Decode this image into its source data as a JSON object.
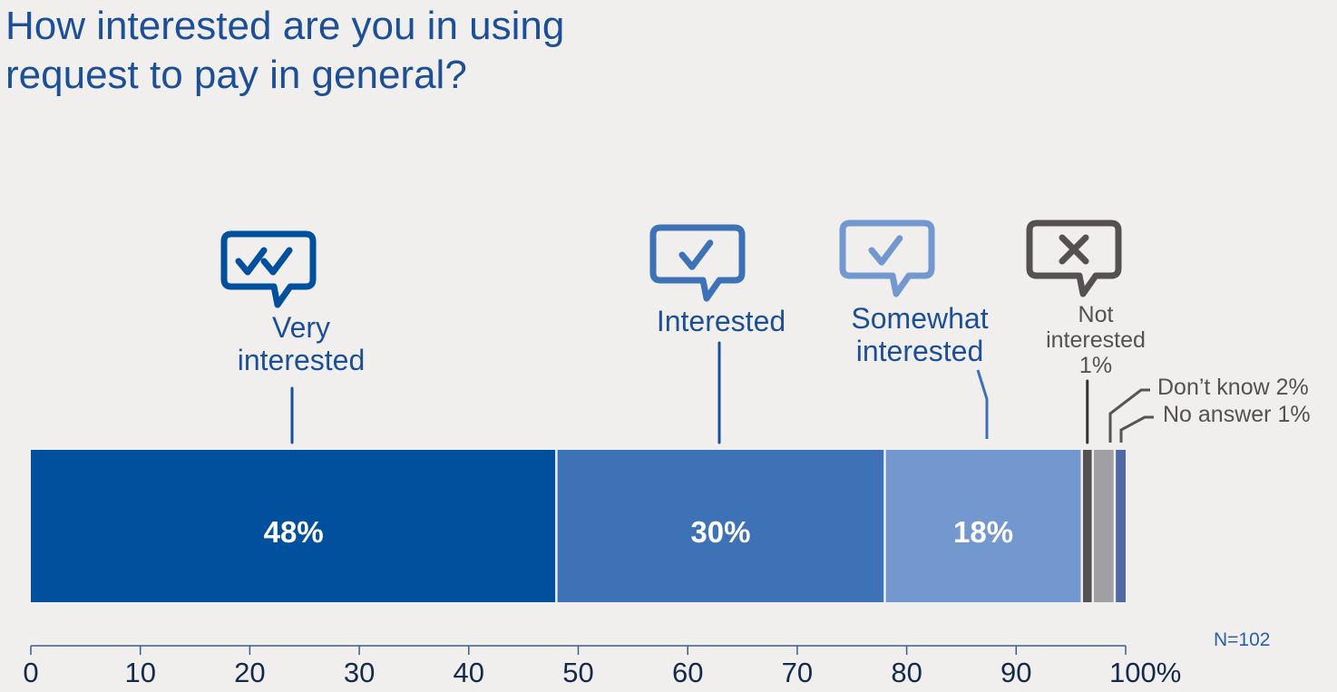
{
  "title": {
    "line1": "How interested are you in using",
    "line2": "request to pay in general?"
  },
  "sample_size": "N=102",
  "colors": {
    "title": "#1d4f96",
    "very_interested": "#01509e",
    "interested": "#3d72b6",
    "somewhat_interested": "#7397cf",
    "not_interested": "#555152",
    "dont_know": "#a0a0a4",
    "no_answer": "#4f6aa3",
    "axis": "#33608f"
  },
  "chart_data": {
    "type": "bar",
    "orientation": "horizontal-stacked",
    "categories": [
      "Very interested",
      "Interested",
      "Somewhat interested",
      "Not interested",
      "Don’t know",
      "No answer"
    ],
    "values": [
      48,
      30,
      18,
      1,
      2,
      1
    ],
    "data_labels": [
      "48%",
      "30%",
      "18%",
      "",
      "",
      ""
    ],
    "annotation_labels": [
      [
        "Very",
        "interested"
      ],
      [
        "Interested"
      ],
      [
        "Somewhat",
        "interested"
      ],
      [
        "Not",
        "interested",
        "1%"
      ],
      [
        "Don’t know 2%"
      ],
      [
        "No answer 1%"
      ]
    ],
    "icons": [
      "double-check-speech-icon",
      "check-speech-icon",
      "check-speech-icon",
      "cross-speech-icon",
      "",
      ""
    ],
    "xlim": [
      0,
      100
    ],
    "xticks": [
      "0",
      "10",
      "20",
      "30",
      "40",
      "50",
      "60",
      "70",
      "80",
      "90",
      "100%"
    ],
    "grid": false,
    "legend": "none"
  }
}
